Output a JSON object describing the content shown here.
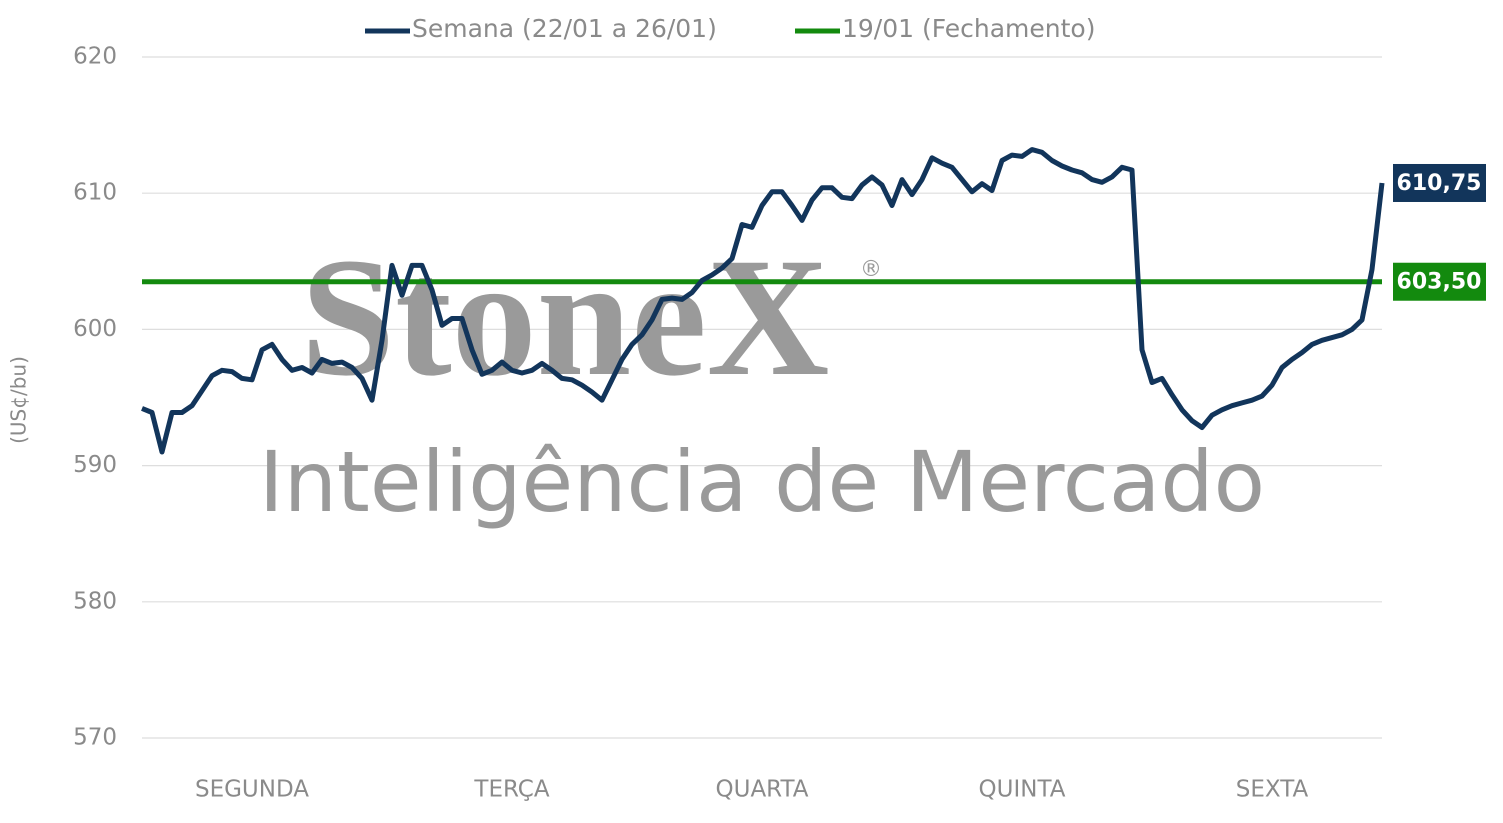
{
  "chart_data": {
    "type": "line",
    "y_label": "(US¢/bu)",
    "ylim": [
      570,
      620
    ],
    "yticks": [
      570,
      580,
      590,
      600,
      610,
      620
    ],
    "grid": true,
    "categories": [
      null,
      null,
      null,
      null,
      null,
      null,
      null,
      null,
      null,
      null,
      null,
      "SEGUNDA",
      null,
      null,
      null,
      null,
      null,
      null,
      null,
      null,
      null,
      null,
      null,
      null,
      null,
      null,
      null,
      null,
      null,
      null,
      null,
      null,
      null,
      null,
      null,
      null,
      null,
      "TERÇA",
      null,
      null,
      null,
      null,
      null,
      null,
      null,
      null,
      null,
      null,
      null,
      null,
      null,
      null,
      null,
      null,
      null,
      null,
      null,
      null,
      null,
      null,
      null,
      null,
      "QUARTA",
      null,
      null,
      null,
      null,
      null,
      null,
      null,
      null,
      null,
      null,
      null,
      null,
      null,
      null,
      null,
      null,
      null,
      null,
      null,
      null,
      null,
      null,
      null,
      null,
      null,
      "QUINTA",
      null,
      null,
      null,
      null,
      null,
      null,
      null,
      null,
      null,
      null,
      null,
      null,
      null,
      null,
      null,
      null,
      null,
      null,
      null,
      null,
      null,
      null,
      null,
      null,
      "SEXTA",
      null,
      null,
      null,
      null,
      null,
      null,
      null,
      null,
      null,
      null,
      null
    ],
    "series": [
      {
        "name": "Semana (22/01 a 26/01)",
        "color": "#12355b",
        "values": [
          594.2,
          593.9,
          591.0,
          593.9,
          593.9,
          594.4,
          595.5,
          596.6,
          597.0,
          596.9,
          596.4,
          596.3,
          598.5,
          598.9,
          597.8,
          597.0,
          597.2,
          596.8,
          597.8,
          597.5,
          597.6,
          597.2,
          596.4,
          594.8,
          599.2,
          604.7,
          602.5,
          604.7,
          604.7,
          602.9,
          600.3,
          600.8,
          600.8,
          598.5,
          596.7,
          597.0,
          597.6,
          597.0,
          596.8,
          597.0,
          597.5,
          597.0,
          596.4,
          596.3,
          595.9,
          595.4,
          594.8,
          596.3,
          597.8,
          598.9,
          599.6,
          600.7,
          602.2,
          602.3,
          602.2,
          602.7,
          603.6,
          604.0,
          604.5,
          605.2,
          607.7,
          607.5,
          609.1,
          610.1,
          610.1,
          609.1,
          608.0,
          609.5,
          610.4,
          610.4,
          609.7,
          609.6,
          610.6,
          611.2,
          610.6,
          609.1,
          611.0,
          609.9,
          611.0,
          612.6,
          612.2,
          611.9,
          611.0,
          610.1,
          610.7,
          610.2,
          612.4,
          612.8,
          612.7,
          613.2,
          613.0,
          612.4,
          612.0,
          611.7,
          611.5,
          611.0,
          610.8,
          611.2,
          611.9,
          611.7,
          598.5,
          596.1,
          596.4,
          595.2,
          594.1,
          593.3,
          592.8,
          593.7,
          594.1,
          594.4,
          594.6,
          594.8,
          595.1,
          595.9,
          597.2,
          597.8,
          598.3,
          598.9,
          599.2,
          599.4,
          599.6,
          600.0,
          600.7,
          604.4,
          610.75
        ],
        "value_labels": [
          null,
          null,
          null,
          null,
          null,
          null,
          null,
          null,
          null,
          null,
          null,
          null,
          null,
          null,
          null,
          null,
          null,
          null,
          null,
          null,
          null,
          null,
          null,
          null,
          null,
          null,
          null,
          null,
          null,
          null,
          null,
          null,
          null,
          null,
          null,
          null,
          null,
          null,
          null,
          null,
          null,
          null,
          null,
          null,
          null,
          null,
          null,
          null,
          null,
          null,
          null,
          null,
          null,
          null,
          null,
          null,
          null,
          null,
          null,
          null,
          null,
          null,
          null,
          null,
          null,
          null,
          null,
          null,
          null,
          null,
          null,
          null,
          null,
          null,
          null,
          null,
          null,
          null,
          null,
          null,
          null,
          null,
          null,
          null,
          null,
          null,
          null,
          null,
          null,
          null,
          null,
          null,
          null,
          null,
          null,
          null,
          null,
          null,
          null,
          null,
          null,
          null,
          null,
          null,
          null,
          null,
          null,
          null,
          null,
          null,
          null,
          null,
          null,
          null,
          null,
          null,
          null,
          null,
          null,
          null,
          null,
          null,
          null,
          null,
          "610,75"
        ]
      }
    ],
    "hline": {
      "name": "19/01 (Fechamento)",
      "color": "#138a0e",
      "value": 603.5,
      "value_label": "603,50"
    },
    "watermark": {
      "logo": "StoneX",
      "registered": "®",
      "subtitle": "Inteligência de Mercado"
    }
  }
}
